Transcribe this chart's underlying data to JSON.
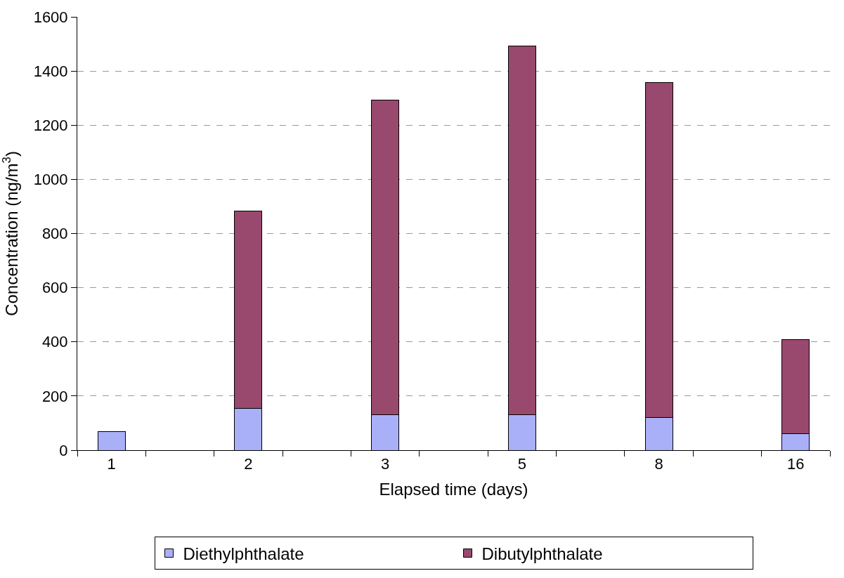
{
  "chart_data": {
    "type": "bar",
    "stacked": true,
    "xlabel": "Elapsed time (days)",
    "ylabel": "Concentration (ng/m$^{3}$)",
    "categories": [
      "1",
      null,
      "2",
      null,
      "3",
      null,
      "5",
      null,
      "8",
      null,
      "16"
    ],
    "series": [
      {
        "name": "Diethylphthalate",
        "color": "#aab0f8",
        "values": [
          70,
          null,
          155,
          null,
          132,
          null,
          130,
          null,
          121,
          null,
          60
        ]
      },
      {
        "name": "Dibutylphthalate",
        "color": "#98496d",
        "values": [
          null,
          null,
          727,
          null,
          1160,
          null,
          1362,
          null,
          1237,
          null,
          348
        ]
      }
    ],
    "ylim": [
      0,
      1600
    ],
    "yticks": [
      0,
      200,
      400,
      600,
      800,
      1000,
      1200,
      1400,
      1600
    ],
    "grid": "y",
    "legend": "bottom"
  }
}
